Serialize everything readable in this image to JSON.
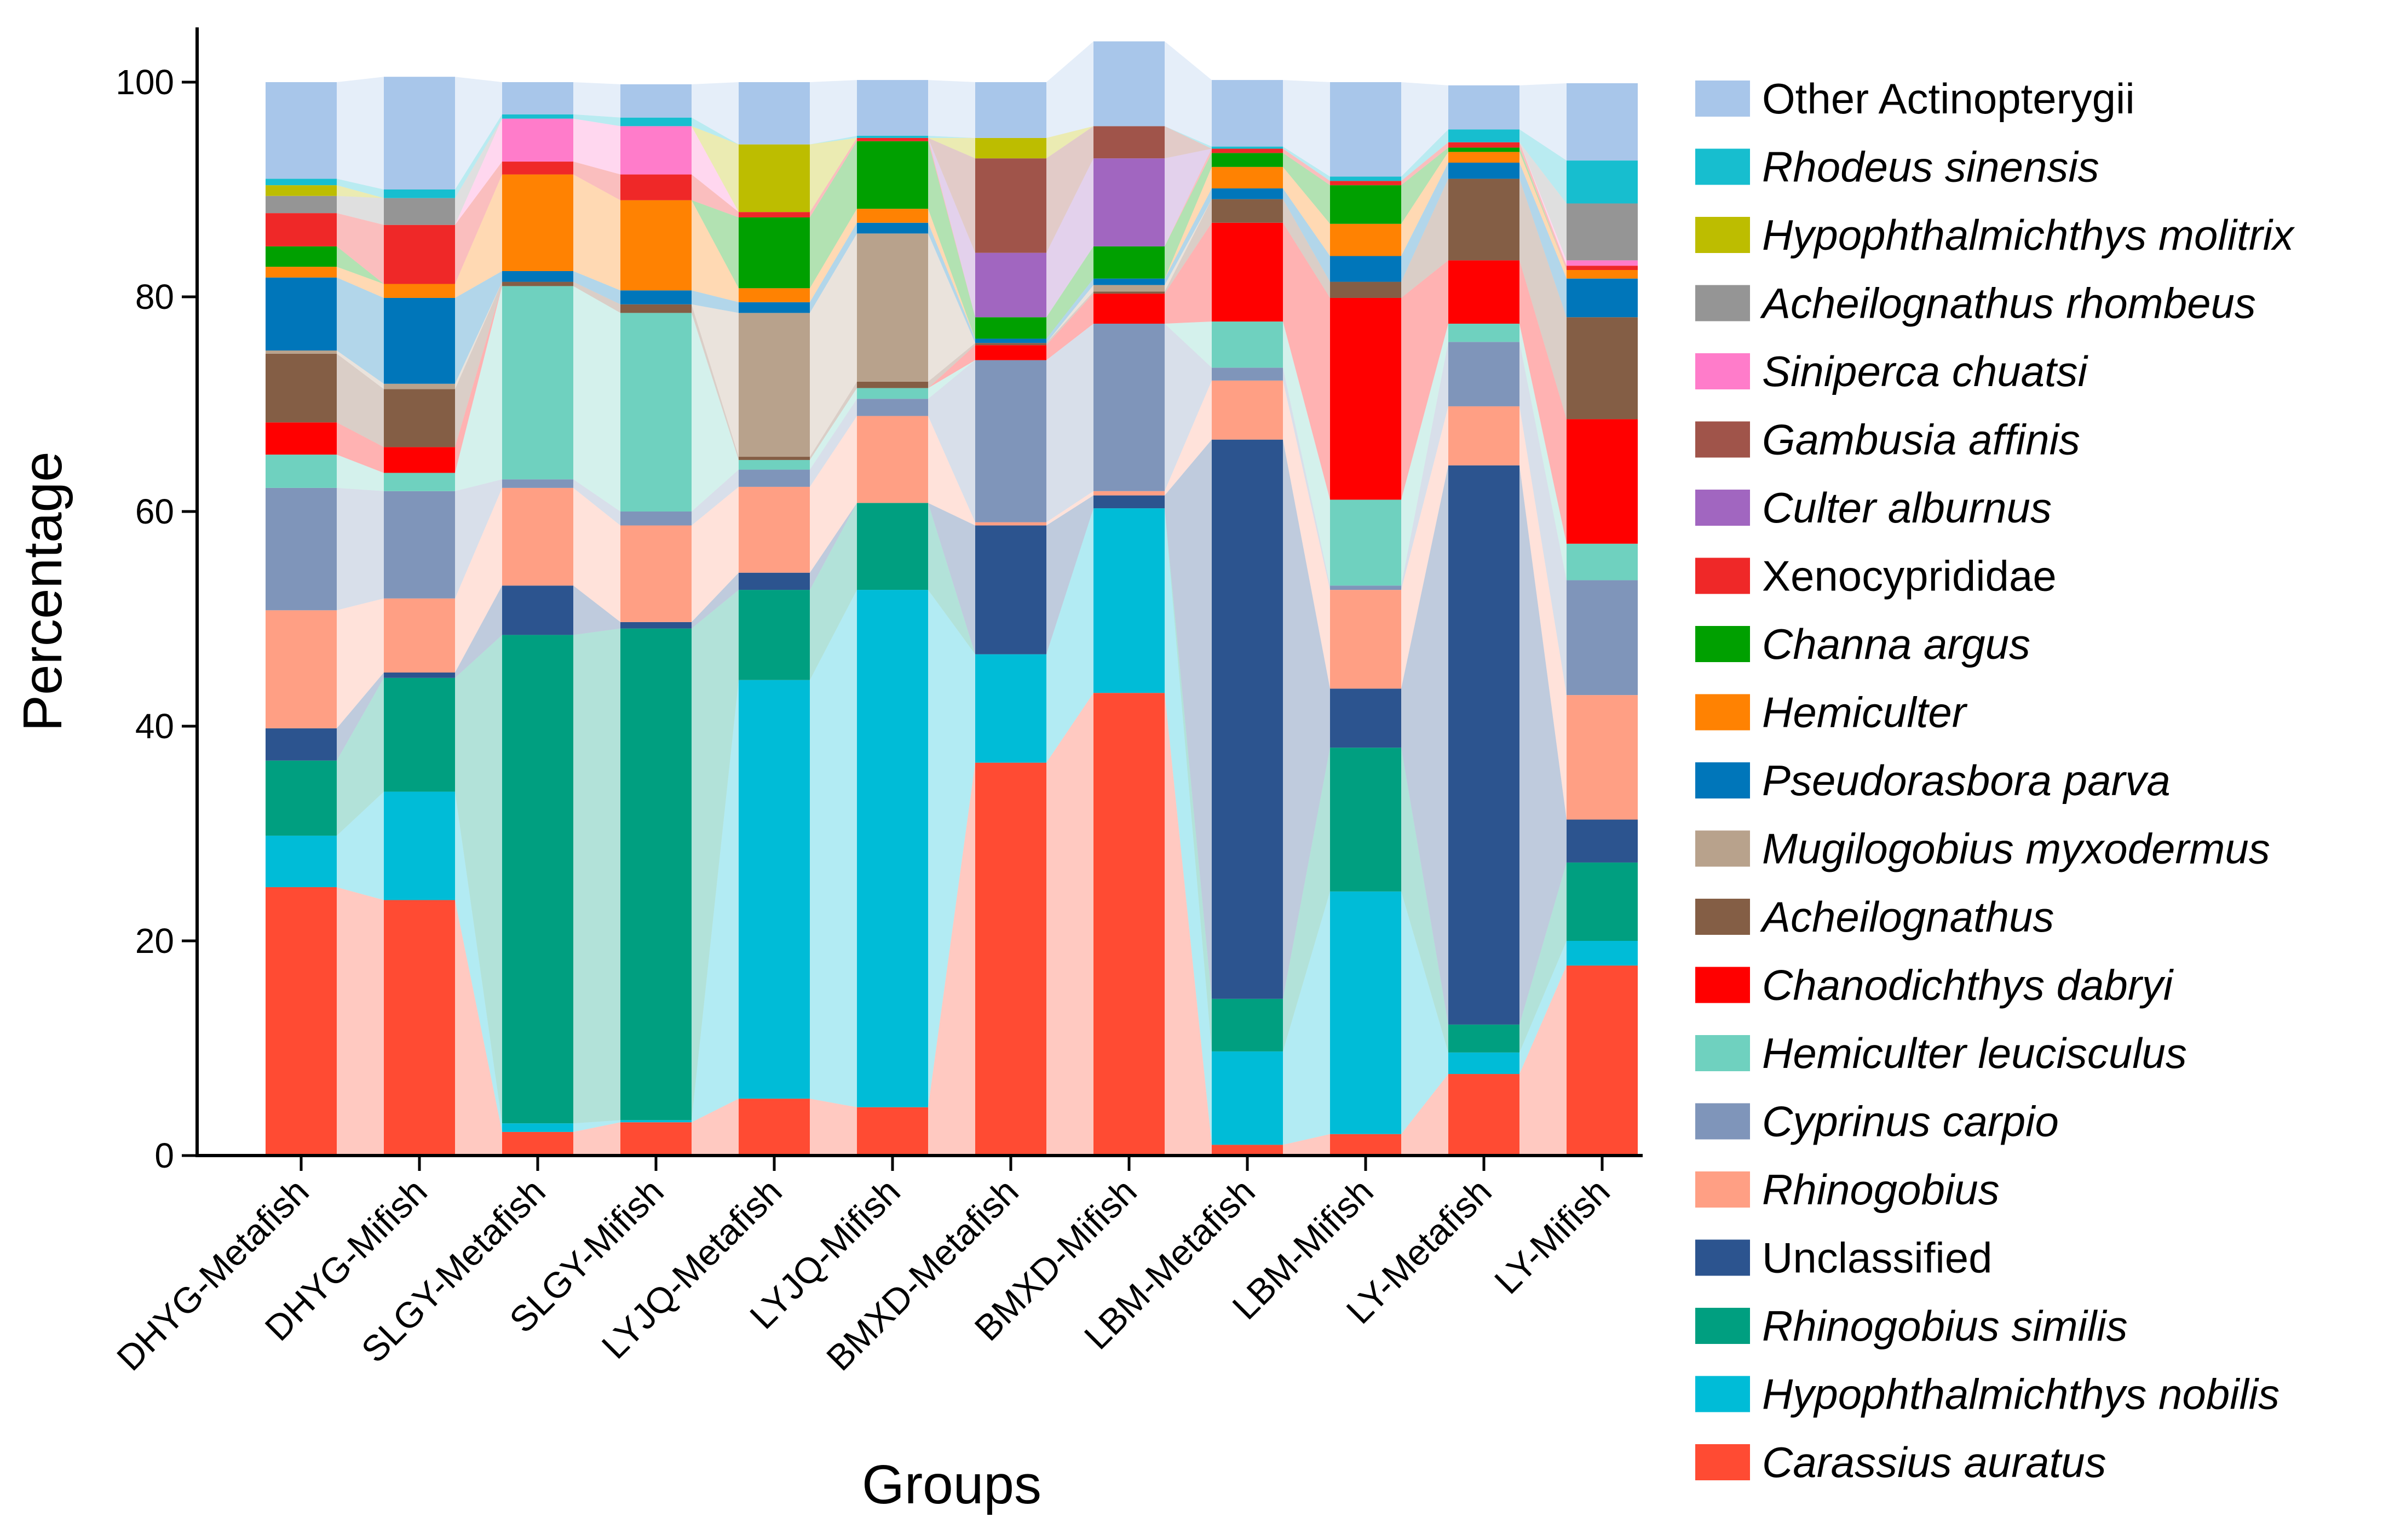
{
  "chart_data": {
    "type": "bar",
    "stacked": true,
    "stack_connectors": true,
    "xlabel": "Groups",
    "ylabel": "Percentage",
    "ylim": [
      0,
      100
    ],
    "yticks": [
      0,
      20,
      40,
      60,
      80,
      100
    ],
    "grid": false,
    "legend_position": "right",
    "categories": [
      "DHYG-Metafish",
      "DHYG-Mifish",
      "SLGY-Metafish",
      "SLGY-Mifish",
      "LYJQ-Metafish",
      "LYJQ-Mifish",
      "BMXD-Metafish",
      "BMXD-Mifish",
      "LBM-Metafish",
      "LBM-Mifish",
      "LY-Metafish",
      "LY-Mifish"
    ],
    "series": [
      {
        "name": "Carassius auratus",
        "italic": true,
        "color": "#FF4B33",
        "values": [
          25.0,
          23.8,
          2.2,
          3.1,
          5.3,
          4.5,
          36.6,
          43.1,
          1.0,
          2.0,
          7.6,
          17.7
        ]
      },
      {
        "name": "Hypophthalmichthys nobilis",
        "italic": true,
        "color": "#00BCD7",
        "values": [
          4.8,
          10.1,
          0.8,
          0.2,
          39.0,
          48.2,
          10.1,
          17.2,
          8.7,
          22.6,
          2.0,
          2.3
        ]
      },
      {
        "name": "Rhinogobius similis",
        "italic": true,
        "color": "#009F80",
        "values": [
          7.0,
          10.6,
          45.5,
          45.8,
          8.4,
          8.1,
          0,
          0,
          4.9,
          13.4,
          2.6,
          7.3
        ]
      },
      {
        "name": "Unclassified",
        "italic": false,
        "color": "#2C548F",
        "values": [
          3.0,
          0.5,
          4.6,
          0.6,
          1.6,
          0,
          12.0,
          1.2,
          52.1,
          5.5,
          52.1,
          4.0
        ]
      },
      {
        "name": "Rhinogobius",
        "italic": true,
        "color": "#FF9F84",
        "values": [
          11.0,
          6.9,
          9.1,
          9.0,
          8.0,
          8.1,
          0.3,
          0.4,
          5.5,
          9.2,
          5.5,
          11.6
        ]
      },
      {
        "name": "Cyprinus carpio",
        "italic": true,
        "color": "#7F95BA",
        "values": [
          11.4,
          10.0,
          0.8,
          1.3,
          1.6,
          1.6,
          15.1,
          15.6,
          1.2,
          0.4,
          6.0,
          10.7
        ]
      },
      {
        "name": "Hemiculter leucisculus",
        "italic": true,
        "color": "#6FD1BF",
        "values": [
          3.1,
          1.7,
          18.0,
          18.5,
          0.9,
          1.0,
          0,
          0,
          4.3,
          8.0,
          1.7,
          3.4
        ]
      },
      {
        "name": "Chanodichthys dabryi",
        "italic": true,
        "color": "#FF0000",
        "values": [
          3.0,
          2.4,
          0,
          0,
          0,
          0,
          1.4,
          2.8,
          9.2,
          18.8,
          5.9,
          11.6
        ]
      },
      {
        "name": "Acheilognathus",
        "italic": true,
        "color": "#845E45",
        "values": [
          6.4,
          5.4,
          0.4,
          0.8,
          0.3,
          0.6,
          0.2,
          0.2,
          2.2,
          1.5,
          7.6,
          9.5
        ]
      },
      {
        "name": "Mugilogobius myxodermus",
        "italic": true,
        "color": "#B8A28C",
        "values": [
          0.3,
          0.5,
          0,
          0,
          13.4,
          13.8,
          0,
          0.6,
          0,
          0,
          0,
          0
        ]
      },
      {
        "name": "Pseudorasbora parva",
        "italic": true,
        "color": "#0076BA",
        "values": [
          6.8,
          8.0,
          1.0,
          1.3,
          1.0,
          1.0,
          0.4,
          0.6,
          1.0,
          2.4,
          1.5,
          3.6
        ]
      },
      {
        "name": "Hemiculter",
        "italic": true,
        "color": "#FF8202",
        "values": [
          1.0,
          1.3,
          9.0,
          8.4,
          1.3,
          1.3,
          0,
          0,
          2.0,
          3.0,
          1.0,
          0.8
        ]
      },
      {
        "name": "Channa argus",
        "italic": true,
        "color": "#00A000",
        "values": [
          1.9,
          0,
          0,
          0,
          6.6,
          6.3,
          2.0,
          3.0,
          1.3,
          3.6,
          0.4,
          0
        ]
      },
      {
        "name": "Xenocyprididae",
        "italic": false,
        "color": "#EF2828",
        "values": [
          3.1,
          5.5,
          1.2,
          2.4,
          0.5,
          0.3,
          0,
          0,
          0.4,
          0.4,
          0.5,
          0.4
        ]
      },
      {
        "name": "Culter alburnus",
        "italic": true,
        "color": "#A166C0",
        "values": [
          0,
          0,
          0,
          0,
          0,
          0,
          6.0,
          8.2,
          0,
          0,
          0,
          0
        ]
      },
      {
        "name": "Gambusia affinis",
        "italic": true,
        "color": "#A0544A",
        "values": [
          0,
          0,
          0,
          0,
          0,
          0,
          8.8,
          3.0,
          0,
          0,
          0,
          0
        ]
      },
      {
        "name": "Siniperca chuatsi",
        "italic": true,
        "color": "#FF7CCA",
        "values": [
          0,
          0,
          4.0,
          4.5,
          0,
          0,
          0,
          0,
          0,
          0,
          0,
          0.5
        ]
      },
      {
        "name": "Acheilognathus rhombeus",
        "italic": true,
        "color": "#959595",
        "values": [
          1.6,
          2.5,
          0,
          0,
          0,
          0,
          0,
          0,
          0,
          0,
          0,
          5.3
        ]
      },
      {
        "name": "Hypophthalmichthys molitrix",
        "italic": true,
        "color": "#BDBD00",
        "values": [
          1.0,
          0,
          0,
          0,
          6.3,
          0,
          1.9,
          0,
          0,
          0,
          0,
          0
        ]
      },
      {
        "name": "Rhodeus sinensis",
        "italic": true,
        "color": "#17BECF",
        "values": [
          0.6,
          0.8,
          0.4,
          0.8,
          0,
          0.2,
          0,
          0,
          0.2,
          0.4,
          1.2,
          4.0
        ]
      },
      {
        "name": "Other Actinopterygii",
        "italic": false,
        "color": "#A8C6EA",
        "values": [
          9.0,
          10.5,
          3.0,
          3.1,
          5.8,
          5.2,
          5.2,
          7.9,
          6.2,
          8.8,
          4.1,
          7.2
        ]
      }
    ]
  }
}
